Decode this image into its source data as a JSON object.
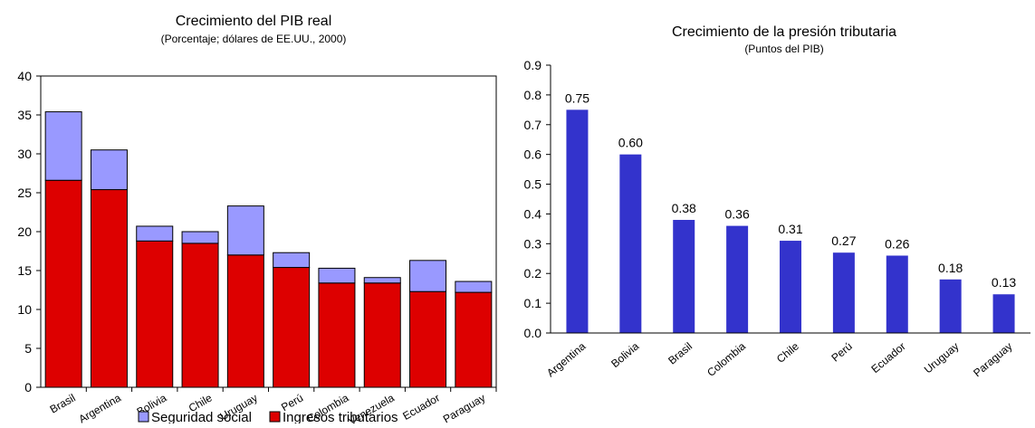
{
  "chart_data": [
    {
      "type": "bar",
      "stacked": true,
      "title": "Crecimiento del PIB real",
      "subtitle": "(Porcentaje; dólares de EE.UU., 2000)",
      "categories": [
        "Brasil",
        "Argentina",
        "Bolivia",
        "Chile",
        "Uruguay",
        "Perú",
        "Colombia",
        "Venezuela",
        "Ecuador",
        "Paraguay"
      ],
      "series": [
        {
          "name": "Ingresos tributarios",
          "color": "#dd0000",
          "values": [
            26.6,
            25.4,
            18.8,
            18.5,
            17.0,
            15.4,
            13.4,
            13.4,
            12.3,
            12.2
          ]
        },
        {
          "name": "Seguridad social",
          "color": "#9999ff",
          "values": [
            8.8,
            5.1,
            1.9,
            1.5,
            6.3,
            1.9,
            1.9,
            0.7,
            4.0,
            1.4
          ]
        }
      ],
      "ylim": [
        0,
        40
      ],
      "yticks": [
        0,
        5,
        10,
        15,
        20,
        25,
        30,
        35,
        40
      ],
      "grid": false,
      "legend": "bottom"
    },
    {
      "type": "bar",
      "title": "Crecimiento de la presión tributaria",
      "subtitle": "(Puntos del PIB)",
      "categories": [
        "Argentina",
        "Bolivia",
        "Brasil",
        "Colombia",
        "Chile",
        "Perú",
        "Ecuador",
        "Uruguay",
        "Paraguay"
      ],
      "values": [
        0.75,
        0.6,
        0.38,
        0.36,
        0.31,
        0.27,
        0.26,
        0.18,
        0.13
      ],
      "data_labels": [
        "0.75",
        "0.60",
        "0.38",
        "0.36",
        "0.31",
        "0.27",
        "0.26",
        "0.18",
        "0.13"
      ],
      "color": "#3333cc",
      "ylim": [
        0,
        0.9
      ],
      "yticks": [
        "0.0",
        "0.1",
        "0.2",
        "0.3",
        "0.4",
        "0.5",
        "0.6",
        "0.7",
        "0.8",
        "0.9"
      ],
      "grid": false
    }
  ]
}
